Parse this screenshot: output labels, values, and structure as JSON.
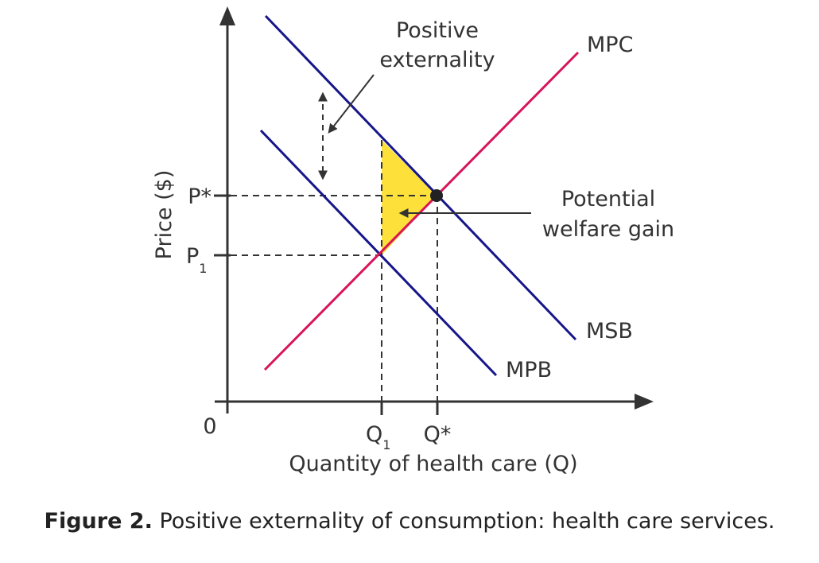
{
  "figure": {
    "caption_label": "Figure 2.",
    "caption_text": " Positive externality of consumption: health care services.",
    "y_axis_label": "Price ($)",
    "x_axis_label": "Quantity of health care (Q)",
    "origin_label": "0",
    "price_labels": {
      "p_star": "P*",
      "p1": "P",
      "p1_sub": "1"
    },
    "quantity_labels": {
      "q1": "Q",
      "q1_sub": "1",
      "q_star": "Q*"
    },
    "curves": {
      "msb": "MSB",
      "mpb": "MPB",
      "mpc": "MPC"
    },
    "annotations": {
      "externality_line1": "Positive",
      "externality_line2": "externality",
      "welfare_line1": "Potential",
      "welfare_line2": "welfare gain"
    },
    "colors": {
      "benefit_curves": "#16168a",
      "cost_curve": "#d8145a",
      "welfare_area": "#fde03a",
      "axes": "#333333"
    }
  }
}
